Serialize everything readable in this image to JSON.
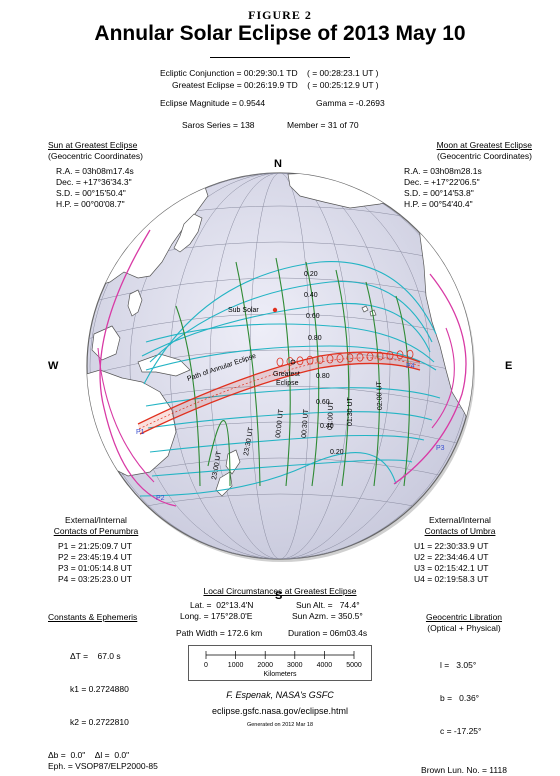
{
  "figure_label": "Figure 2",
  "title": "Annular Solar Eclipse of  2013 May 10",
  "header": {
    "conjunction": "Ecliptic Conjunction = 00:29:30.1 TD    ( = 00:28:23.1 UT )",
    "greatest": "Greatest Eclipse = 00:26:19.9 TD    ( = 00:25:12.9 UT )",
    "magnitude": "Eclipse Magnitude = 0.9544",
    "gamma": "Gamma = -0.2693",
    "saros": "Saros Series = 138",
    "member": "Member = 31 of 70"
  },
  "sun": {
    "title": "Sun at Greatest Eclipse",
    "subtitle": "(Geocentric Coordinates)",
    "lines": [
      "R.A. = 03h08m17.4s",
      "Dec. = +17°36'34.3\"",
      "S.D. = 00°15'50.4\"",
      "H.P. = 00°00'08.7\""
    ]
  },
  "moon": {
    "title": "Moon at Greatest Eclipse",
    "subtitle": "(Geocentric Coordinates)",
    "lines": [
      "R.A. = 03h08m28.1s",
      "Dec. = +17°22'06.5\"",
      "S.D. = 00°14'53.8\"",
      "H.P. = 00°54'40.4\""
    ]
  },
  "compass": {
    "n": "N",
    "s": "S",
    "e": "E",
    "w": "W"
  },
  "map": {
    "sub_solar": "Sub Solar",
    "path_label": "Path of Annular Eclipse",
    "greatest_label_1": "Greatest",
    "greatest_label_2": "Eclipse",
    "magnitude_labels": [
      "0.20",
      "0.40",
      "0.60",
      "0.80",
      "0.80",
      "0.60",
      "0.40",
      "0.20"
    ],
    "time_labels": [
      "23:00 UT",
      "23:30 UT",
      "00:00 UT",
      "00:30 UT",
      "01:00 UT",
      "01:30 UT",
      "02:00 UT"
    ],
    "contact_labels": [
      "P1",
      "P2",
      "P3",
      "P4"
    ],
    "colors": {
      "ocean": "#dfe0ef",
      "land": "#ffffff",
      "cyan": "#23b4c4",
      "green": "#2f8a34",
      "magenta": "#d83aa5",
      "path": "#e0301e",
      "blue": "#3a4fd0"
    }
  },
  "penumbra": {
    "title_1": "External/Internal",
    "title_2": "Contacts of Penumbra",
    "lines": [
      "P1 = 21:25:09.7 UT",
      "P2 = 23:45:19.4 UT",
      "P3 = 01:05:14.8 UT",
      "P4 = 03:25:23.0 UT"
    ]
  },
  "umbra": {
    "title_1": "External/Internal",
    "title_2": "Contacts of Umbra",
    "lines": [
      "U1 = 22:30:33.9 UT",
      "U2 = 22:34:46.4 UT",
      "U3 = 02:15:42.1 UT",
      "U4 = 02:19:58.3 UT"
    ]
  },
  "local": {
    "title": "Local Circumstances at Greatest Eclipse",
    "lat": "Lat. =  02°13.4'N",
    "long": "Long. = 175°28.0'E",
    "alt": "Sun Alt. =   74.4°",
    "azm": "Sun Azm. = 350.5°",
    "width": "Path Width = 172.6 km",
    "duration": "Duration = 06m03.4s"
  },
  "scale": {
    "ticks": [
      "0",
      "1000",
      "2000",
      "3000",
      "4000",
      "5000"
    ],
    "unit": "Kilometers"
  },
  "constants": {
    "title": "Constants & Ephemeris",
    "lines": [
      "ΔT =    67.0 s",
      "k1 = 0.2724880",
      "k2 = 0.2722810",
      "Δb =  0.0\"    Δl =  0.0\"",
      "Eph. = VSOP87/ELP2000-85"
    ]
  },
  "libration": {
    "title": "Geocentric Libration",
    "subtitle": "(Optical + Physical)",
    "lines": [
      "l =   3.05°",
      "b =   0.36°",
      "c = -17.25°"
    ],
    "brown": "Brown Lun. No. = 1118"
  },
  "credit": "F. Espenak, NASA's GSFC",
  "url": "eclipse.gsfc.nasa.gov/eclipse.html",
  "generated": "Generated on 2012 Mar 18"
}
